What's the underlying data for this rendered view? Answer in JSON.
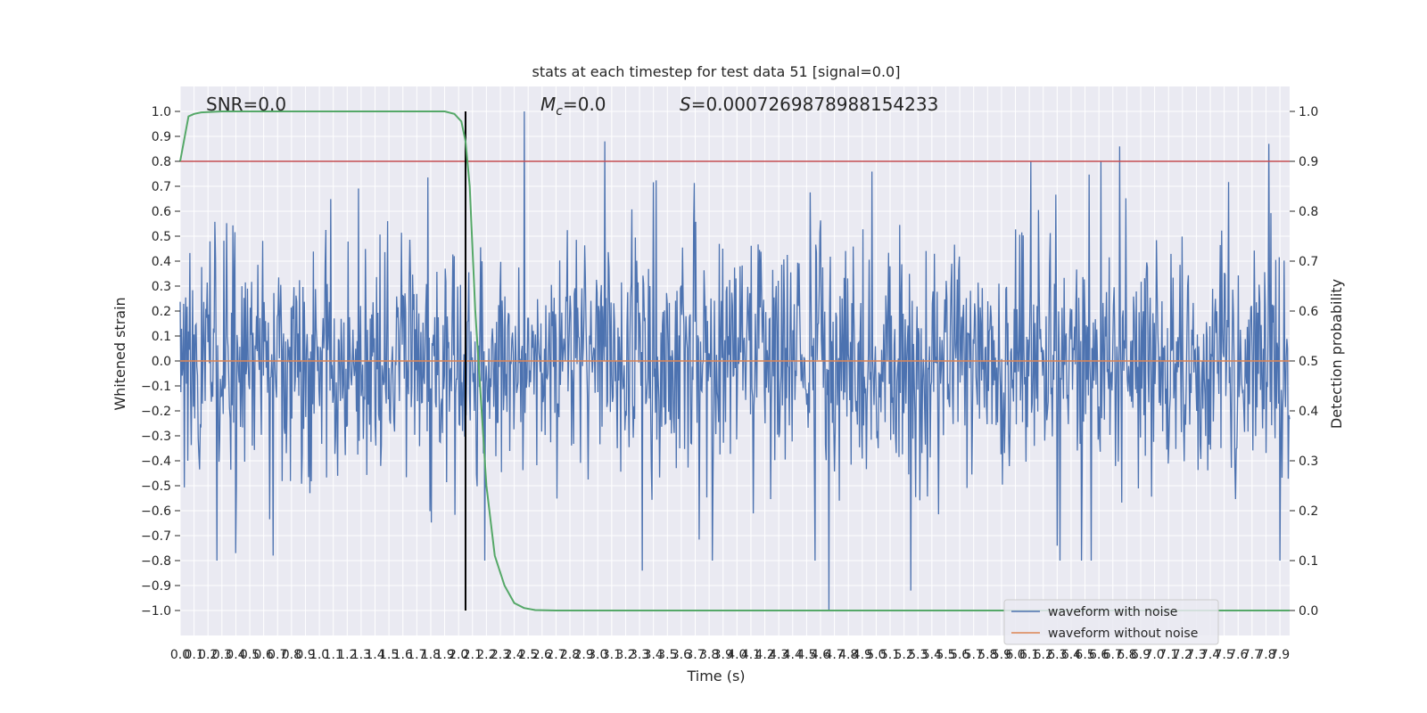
{
  "chart_data": {
    "type": "line",
    "title": "stats at each timestep for test data 51 [signal=0.0]",
    "xlabel": "Time (s)",
    "ylabel": "Whitened strain",
    "y2label": "Detection probability",
    "xlim": [
      0.0,
      7.97
    ],
    "ylim": [
      -1.1,
      1.1
    ],
    "y2lim": [
      -0.05,
      1.05
    ],
    "x_ticks": [
      "0.0",
      "0.1",
      "0.2",
      "0.3",
      "0.4",
      "0.5",
      "0.6",
      "0.7",
      "0.8",
      "0.9",
      "1.0",
      "1.1",
      "1.2",
      "1.3",
      "1.4",
      "1.5",
      "1.6",
      "1.7",
      "1.8",
      "1.9",
      "2.0",
      "2.1",
      "2.2",
      "2.3",
      "2.4",
      "2.5",
      "2.6",
      "2.7",
      "2.8",
      "2.9",
      "3.0",
      "3.1",
      "3.2",
      "3.3",
      "3.4",
      "3.5",
      "3.6",
      "3.7",
      "3.8",
      "3.9",
      "4.0",
      "4.1",
      "4.2",
      "4.3",
      "4.4",
      "4.5",
      "4.6",
      "4.7",
      "4.8",
      "4.9",
      "5.0",
      "5.1",
      "5.2",
      "5.3",
      "5.4",
      "5.5",
      "5.6",
      "5.7",
      "5.8",
      "5.9",
      "6.0",
      "6.1",
      "6.2",
      "6.3",
      "6.4",
      "6.5",
      "6.6",
      "6.7",
      "6.8",
      "6.9",
      "7.0",
      "7.1",
      "7.2",
      "7.3",
      "7.4",
      "7.5",
      "7.6",
      "7.7",
      "7.8",
      "7.9"
    ],
    "y_ticks": [
      "−1.0",
      "−0.9",
      "−0.8",
      "−0.7",
      "−0.6",
      "−0.5",
      "−0.4",
      "−0.3",
      "−0.2",
      "−0.1",
      "0.0",
      "0.1",
      "0.2",
      "0.3",
      "0.4",
      "0.5",
      "0.6",
      "0.7",
      "0.8",
      "0.9",
      "1.0"
    ],
    "y2_ticks": [
      "0.0",
      "0.1",
      "0.2",
      "0.3",
      "0.4",
      "0.5",
      "0.6",
      "0.7",
      "0.8",
      "0.9",
      "1.0"
    ],
    "threshold": 0.8,
    "vline_x": 2.05,
    "annotations": {
      "snr": "SNR=0.0",
      "mc_symbol": "M",
      "mc_sub": "c",
      "mc_value": "=0.0",
      "s_symbol": "S",
      "s_value": "=0.0007269878988154233"
    },
    "series": [
      {
        "name": "waveform with noise",
        "color": "#4c72b0",
        "description": "dense noisy whitened strain, mostly within ±0.4 with spikes up to ±1.0",
        "noise_seed": 51,
        "samples": 1600,
        "spikes": [
          [
            2.47,
            1.0
          ],
          [
            3.05,
            0.88
          ],
          [
            4.66,
            -1.0
          ],
          [
            5.25,
            -0.92
          ],
          [
            6.75,
            0.86
          ],
          [
            7.82,
            0.87
          ],
          [
            0.4,
            -0.77
          ],
          [
            0.67,
            -0.78
          ],
          [
            3.32,
            -0.84
          ]
        ]
      },
      {
        "name": "waveform without noise",
        "color": "#dd8452",
        "description": "flat at 0.0"
      },
      {
        "name": "detection probability",
        "color": "#55a868",
        "axis": "right",
        "x": [
          0.0,
          0.06,
          0.1,
          0.15,
          0.3,
          0.6,
          1.0,
          1.5,
          1.8,
          1.9,
          1.97,
          2.02,
          2.05,
          2.08,
          2.12,
          2.2,
          2.26,
          2.33,
          2.4,
          2.47,
          2.55,
          2.7,
          3.0,
          4.0,
          5.0,
          6.0,
          7.0,
          7.97
        ],
        "y": [
          0.9,
          0.99,
          0.995,
          0.998,
          1.0,
          1.0,
          1.0,
          1.0,
          1.0,
          1.0,
          0.995,
          0.98,
          0.94,
          0.85,
          0.6,
          0.25,
          0.11,
          0.05,
          0.015,
          0.005,
          0.001,
          0.0,
          0.0,
          0.0,
          0.0,
          0.0,
          0.0,
          0.0
        ]
      }
    ],
    "legend": [
      "waveform with noise",
      "waveform without noise"
    ],
    "legend_position": "bottom-right",
    "colors": {
      "plot_bg": "#eaeaf2",
      "grid": "#ffffff",
      "threshold": "#c44e52",
      "vline": "#000000"
    }
  }
}
